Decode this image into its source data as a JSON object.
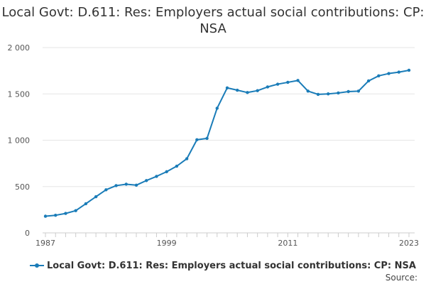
{
  "chart_data": {
    "type": "line",
    "title": "Local Govt: D.611: Res: Employers actual social contributions: CP: NSA",
    "xlabel": "",
    "ylabel": "",
    "x_tick_labels": [
      "1987",
      "1999",
      "2011",
      "2023"
    ],
    "x_ticks": [
      1987,
      1999,
      2011,
      2023
    ],
    "y_tick_labels": [
      "0",
      "500",
      "1 000",
      "1 500",
      "2 000"
    ],
    "y_ticks": [
      0,
      500,
      1000,
      1500,
      2000
    ],
    "xlim": [
      1987,
      2023
    ],
    "ylim": [
      0,
      2000
    ],
    "grid": true,
    "legend_position": "bottom-left",
    "source_label": "Source:",
    "series": [
      {
        "name": "Local Govt: D.611: Res: Employers actual social contributions: CP: NSA",
        "color": "#1a7cb8",
        "x": [
          1987,
          1988,
          1989,
          1990,
          1991,
          1992,
          1993,
          1994,
          1995,
          1996,
          1997,
          1998,
          1999,
          2000,
          2001,
          2002,
          2003,
          2004,
          2005,
          2006,
          2007,
          2008,
          2009,
          2010,
          2011,
          2012,
          2013,
          2014,
          2015,
          2016,
          2017,
          2018,
          2019,
          2020,
          2021,
          2022,
          2023
        ],
        "values": [
          180,
          190,
          210,
          240,
          315,
          390,
          465,
          510,
          525,
          515,
          565,
          610,
          660,
          720,
          800,
          1005,
          1020,
          1345,
          1565,
          1540,
          1515,
          1535,
          1575,
          1605,
          1625,
          1645,
          1530,
          1495,
          1500,
          1510,
          1525,
          1530,
          1640,
          1695,
          1720,
          1735,
          1755
        ]
      }
    ]
  }
}
